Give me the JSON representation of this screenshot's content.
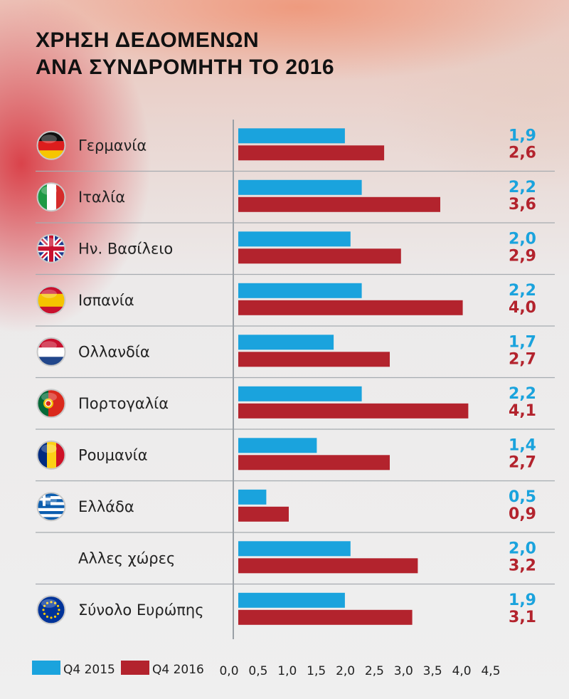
{
  "chart_data": {
    "type": "bar",
    "orientation": "horizontal",
    "title_lines": [
      "ΧΡΗΣΗ ΔΕΔΟΜΕΝΩΝ",
      "ΑΝΑ ΣΥΝΔΡΟΜΗΤΗ ΤΟ 2016"
    ],
    "categories": [
      "Γερμανία",
      "Ιταλία",
      "Ην. Βασίλειο",
      "Ισπανία",
      "Ολλανδία",
      "Πορτογαλία",
      "Ρουμανία",
      "Ελλάδα",
      "Αλλες χώρες",
      "Σύνολο Ευρώπης"
    ],
    "category_icons": [
      "flag-germany",
      "flag-italy",
      "flag-uk",
      "flag-spain",
      "flag-netherlands",
      "flag-portugal",
      "flag-romania",
      "flag-greece",
      "",
      "flag-eu"
    ],
    "series": [
      {
        "name": "Q4 2015",
        "color": "#1aa3dd",
        "values": [
          1.9,
          2.2,
          2.0,
          2.2,
          1.7,
          2.2,
          1.4,
          0.5,
          2.0,
          1.9
        ],
        "labels": [
          "1,9",
          "2,2",
          "2,0",
          "2,2",
          "1,7",
          "2,2",
          "1,4",
          "0,5",
          "2,0",
          "1,9"
        ]
      },
      {
        "name": "Q4 2016",
        "color": "#b3232d",
        "values": [
          2.6,
          3.6,
          2.9,
          4.0,
          2.7,
          4.1,
          2.7,
          0.9,
          3.2,
          3.1
        ],
        "labels": [
          "2,6",
          "3,6",
          "2,9",
          "4,0",
          "2,7",
          "4,1",
          "2,7",
          "0,9",
          "3,2",
          "3,1"
        ]
      }
    ],
    "xlim": [
      0,
      4.5
    ],
    "xticks": [
      "0,0",
      "0,5",
      "1,0",
      "1,5",
      "2,0",
      "2,5",
      "3,0",
      "3,5",
      "4,0",
      "4,5"
    ],
    "legend_position": "bottom-left",
    "grid": false
  }
}
